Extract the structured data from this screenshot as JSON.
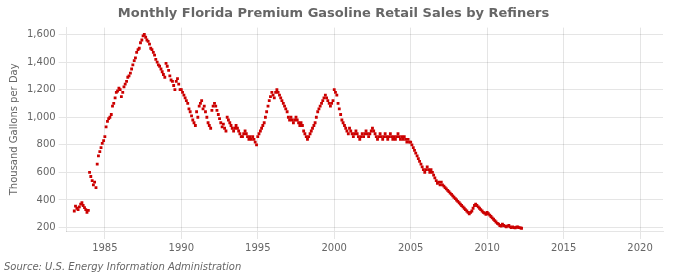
{
  "chart_data": {
    "type": "scatter",
    "title": "Monthly Florida Premium Gasoline Retail Sales by Refiners",
    "ylabel": "Thousand Gallons per Day",
    "annotations": [
      "Source: U.S. Energy Information Administration"
    ],
    "color": "#cc0000",
    "marker": "square",
    "grid": true,
    "xlim": [
      1982.5,
      2021.5
    ],
    "xticks": [
      1985,
      1990,
      1995,
      2000,
      2005,
      2010,
      2015,
      2020
    ],
    "ylim": [
      175,
      1650
    ],
    "yticks": [
      200,
      400,
      600,
      800,
      {
        "value": 1000,
        "label": "1,000"
      },
      {
        "value": 1200,
        "label": "1,200"
      },
      {
        "value": 1400,
        "label": "1,400"
      },
      {
        "value": 1600,
        "label": "1,600"
      }
    ],
    "x": [
      1983.0,
      1983.08,
      1983.17,
      1983.25,
      1983.33,
      1983.42,
      1983.5,
      1983.58,
      1983.67,
      1983.75,
      1983.83,
      1983.92,
      1984.0,
      1984.08,
      1984.17,
      1984.25,
      1984.33,
      1984.42,
      1984.5,
      1984.58,
      1984.67,
      1984.75,
      1984.83,
      1984.92,
      1985.0,
      1985.08,
      1985.17,
      1985.25,
      1985.33,
      1985.42,
      1985.5,
      1985.58,
      1985.67,
      1985.75,
      1985.83,
      1985.92,
      1986.0,
      1986.08,
      1986.17,
      1986.25,
      1986.33,
      1986.42,
      1986.5,
      1986.58,
      1986.67,
      1986.75,
      1986.83,
      1986.92,
      1987.0,
      1987.08,
      1987.17,
      1987.25,
      1987.33,
      1987.42,
      1987.5,
      1987.58,
      1987.67,
      1987.75,
      1987.83,
      1987.92,
      1988.0,
      1988.08,
      1988.17,
      1988.25,
      1988.33,
      1988.42,
      1988.5,
      1988.58,
      1988.67,
      1988.75,
      1988.83,
      1988.92,
      1989.0,
      1989.08,
      1989.17,
      1989.25,
      1989.33,
      1989.42,
      1989.5,
      1989.58,
      1989.67,
      1989.75,
      1989.83,
      1989.92,
      1990.0,
      1990.08,
      1990.17,
      1990.25,
      1990.33,
      1990.42,
      1990.5,
      1990.58,
      1990.67,
      1990.75,
      1990.83,
      1990.92,
      1991.0,
      1991.08,
      1991.17,
      1991.25,
      1991.33,
      1991.42,
      1991.5,
      1991.58,
      1991.67,
      1991.75,
      1991.83,
      1991.92,
      1992.0,
      1992.08,
      1992.17,
      1992.25,
      1992.33,
      1992.42,
      1992.5,
      1992.58,
      1992.67,
      1992.75,
      1992.83,
      1992.92,
      1993.0,
      1993.08,
      1993.17,
      1993.25,
      1993.33,
      1993.42,
      1993.5,
      1993.58,
      1993.67,
      1993.75,
      1993.83,
      1993.92,
      1994.0,
      1994.08,
      1994.17,
      1994.25,
      1994.33,
      1994.42,
      1994.5,
      1994.58,
      1994.67,
      1994.75,
      1994.83,
      1994.92,
      1995.0,
      1995.08,
      1995.17,
      1995.25,
      1995.33,
      1995.42,
      1995.5,
      1995.58,
      1995.67,
      1995.75,
      1995.83,
      1995.92,
      1996.0,
      1996.08,
      1996.17,
      1996.25,
      1996.33,
      1996.42,
      1996.5,
      1996.58,
      1996.67,
      1996.75,
      1996.83,
      1996.92,
      1997.0,
      1997.08,
      1997.17,
      1997.25,
      1997.33,
      1997.42,
      1997.5,
      1997.58,
      1997.67,
      1997.75,
      1997.83,
      1997.92,
      1998.0,
      1998.08,
      1998.17,
      1998.25,
      1998.33,
      1998.42,
      1998.5,
      1998.58,
      1998.67,
      1998.75,
      1998.83,
      1998.92,
      1999.0,
      1999.08,
      1999.17,
      1999.25,
      1999.33,
      1999.42,
      1999.5,
      1999.58,
      1999.67,
      1999.75,
      1999.83,
      1999.92,
      2000.0,
      2000.08,
      2000.17,
      2000.25,
      2000.33,
      2000.42,
      2000.5,
      2000.58,
      2000.67,
      2000.75,
      2000.83,
      2000.92,
      2001.0,
      2001.08,
      2001.17,
      2001.25,
      2001.33,
      2001.42,
      2001.5,
      2001.58,
      2001.67,
      2001.75,
      2001.83,
      2001.92,
      2002.0,
      2002.08,
      2002.17,
      2002.25,
      2002.33,
      2002.42,
      2002.5,
      2002.58,
      2002.67,
      2002.75,
      2002.83,
      2002.92,
      2003.0,
      2003.08,
      2003.17,
      2003.25,
      2003.33,
      2003.42,
      2003.5,
      2003.58,
      2003.67,
      2003.75,
      2003.83,
      2003.92,
      2004.0,
      2004.08,
      2004.17,
      2004.25,
      2004.33,
      2004.42,
      2004.5,
      2004.58,
      2004.67,
      2004.75,
      2004.83,
      2004.92,
      2005.0,
      2005.08,
      2005.17,
      2005.25,
      2005.33,
      2005.42,
      2005.5,
      2005.58,
      2005.67,
      2005.75,
      2005.83,
      2005.92,
      2006.0,
      2006.08,
      2006.17,
      2006.25,
      2006.33,
      2006.42,
      2006.5,
      2006.58,
      2006.67,
      2006.75,
      2006.83,
      2006.92,
      2007.0,
      2007.08,
      2007.17,
      2007.25,
      2007.33,
      2007.42,
      2007.5,
      2007.58,
      2007.67,
      2007.75,
      2007.83,
      2007.92,
      2008.0,
      2008.08,
      2008.17,
      2008.25,
      2008.33,
      2008.42,
      2008.5,
      2008.58,
      2008.67,
      2008.75,
      2008.83,
      2008.92,
      2009.0,
      2009.08,
      2009.17,
      2009.25,
      2009.33,
      2009.42,
      2009.5,
      2009.58,
      2009.67,
      2009.75,
      2009.83,
      2009.92,
      2010.0,
      2010.08,
      2010.17,
      2010.25,
      2010.33,
      2010.42,
      2010.5,
      2010.58,
      2010.67,
      2010.75,
      2010.83,
      2010.92,
      2011.0,
      2011.08,
      2011.17,
      2011.25,
      2011.33,
      2011.42,
      2011.5,
      2011.58,
      2011.67,
      2011.75,
      2011.83,
      2011.92,
      2012.0,
      2012.08,
      2012.17,
      2012.25
    ],
    "values": [
      320,
      355,
      340,
      330,
      350,
      370,
      380,
      360,
      345,
      330,
      310,
      325,
      600,
      570,
      540,
      510,
      530,
      490,
      660,
      720,
      750,
      780,
      810,
      830,
      860,
      930,
      970,
      990,
      1000,
      1020,
      1080,
      1100,
      1140,
      1180,
      1190,
      1210,
      1200,
      1150,
      1180,
      1220,
      1240,
      1260,
      1290,
      1300,
      1320,
      1350,
      1380,
      1410,
      1430,
      1470,
      1490,
      1500,
      1540,
      1560,
      1590,
      1600,
      1580,
      1560,
      1550,
      1530,
      1500,
      1490,
      1470,
      1450,
      1420,
      1400,
      1380,
      1370,
      1350,
      1330,
      1310,
      1290,
      1390,
      1370,
      1340,
      1300,
      1270,
      1260,
      1230,
      1200,
      1260,
      1280,
      1240,
      1200,
      1200,
      1180,
      1160,
      1140,
      1120,
      1100,
      1060,
      1040,
      1010,
      980,
      960,
      940,
      1040,
      1000,
      1080,
      1100,
      1120,
      1060,
      1080,
      1040,
      1000,
      960,
      940,
      920,
      1050,
      1080,
      1100,
      1080,
      1050,
      1020,
      990,
      960,
      930,
      950,
      920,
      900,
      1000,
      980,
      960,
      940,
      920,
      900,
      920,
      940,
      920,
      900,
      880,
      860,
      860,
      880,
      900,
      880,
      860,
      840,
      860,
      840,
      860,
      840,
      820,
      800,
      860,
      880,
      900,
      920,
      940,
      960,
      1000,
      1040,
      1080,
      1120,
      1150,
      1180,
      1160,
      1140,
      1180,
      1200,
      1180,
      1160,
      1140,
      1120,
      1100,
      1080,
      1060,
      1040,
      1000,
      980,
      1000,
      980,
      960,
      980,
      1000,
      980,
      960,
      940,
      960,
      940,
      900,
      880,
      860,
      840,
      860,
      880,
      900,
      920,
      940,
      960,
      1000,
      1040,
      1060,
      1080,
      1100,
      1120,
      1140,
      1160,
      1140,
      1120,
      1100,
      1080,
      1100,
      1120,
      1200,
      1180,
      1160,
      1100,
      1060,
      1020,
      980,
      960,
      940,
      920,
      900,
      880,
      920,
      900,
      880,
      860,
      880,
      900,
      880,
      860,
      840,
      860,
      880,
      860,
      880,
      900,
      880,
      860,
      880,
      900,
      920,
      900,
      880,
      860,
      840,
      860,
      880,
      860,
      840,
      860,
      880,
      860,
      840,
      860,
      880,
      860,
      840,
      860,
      840,
      860,
      880,
      860,
      840,
      860,
      840,
      860,
      840,
      820,
      840,
      820,
      820,
      800,
      780,
      760,
      740,
      720,
      700,
      680,
      660,
      640,
      620,
      600,
      620,
      640,
      620,
      600,
      620,
      600,
      580,
      560,
      540,
      520,
      530,
      510,
      530,
      510,
      500,
      490,
      480,
      470,
      460,
      450,
      440,
      430,
      420,
      410,
      400,
      390,
      380,
      370,
      360,
      350,
      340,
      330,
      320,
      310,
      300,
      310,
      320,
      340,
      360,
      370,
      360,
      350,
      340,
      330,
      320,
      310,
      305,
      295,
      310,
      300,
      290,
      280,
      270,
      260,
      250,
      240,
      230,
      225,
      215,
      210,
      225,
      215,
      210,
      205,
      210,
      215,
      205,
      200,
      205,
      200,
      198,
      202,
      205,
      200,
      198,
      195
    ]
  }
}
